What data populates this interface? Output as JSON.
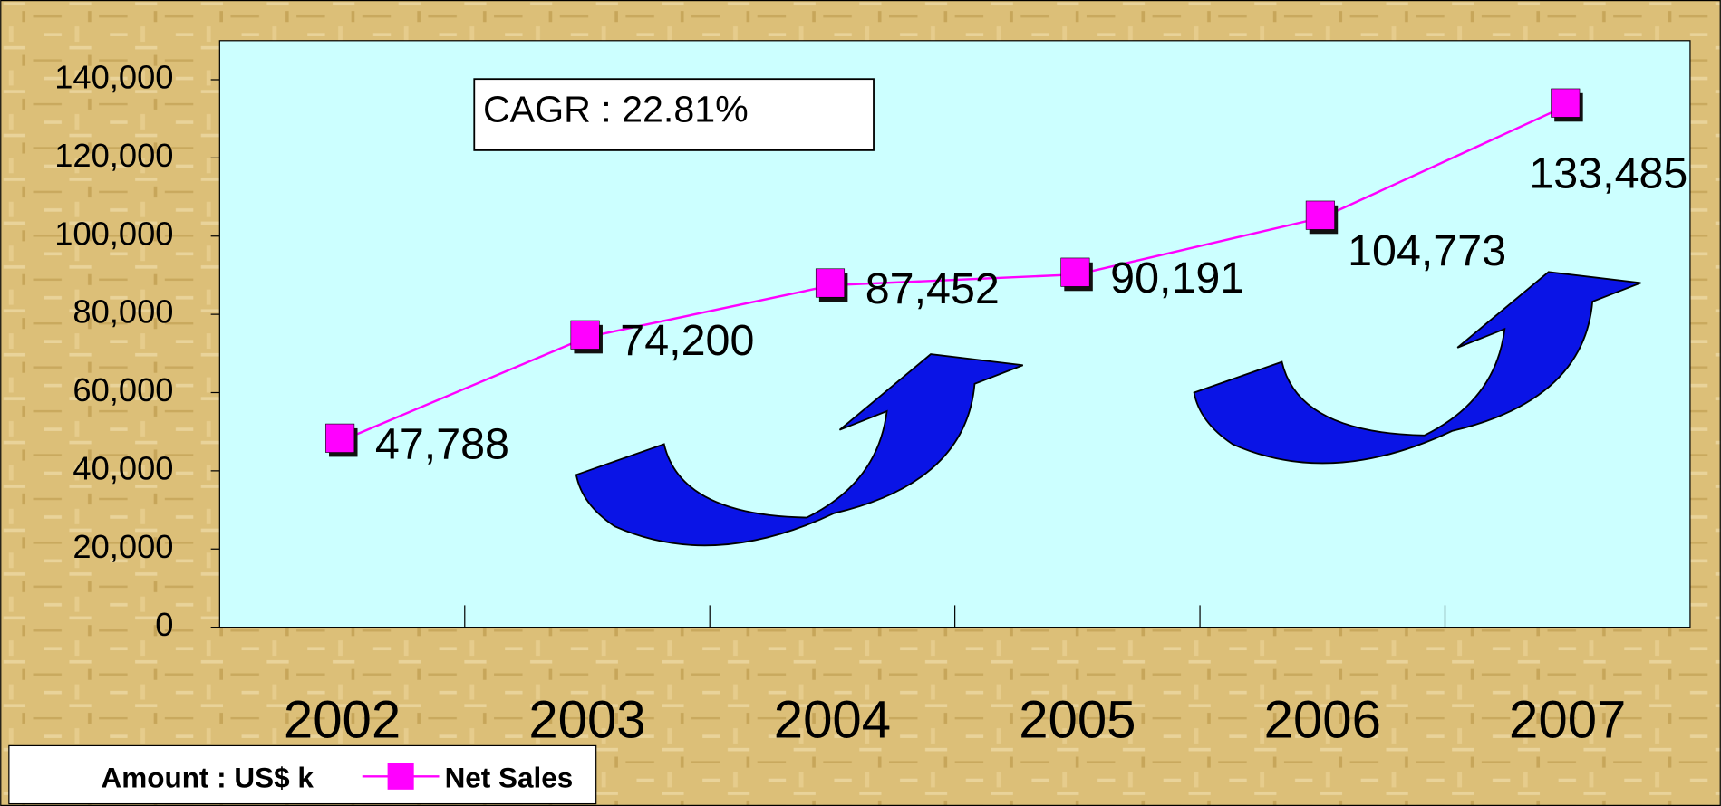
{
  "chart_data": {
    "type": "line",
    "annotation": "CAGR : 22.81%",
    "unit_note": "Amount : US$ k",
    "categories": [
      "2002",
      "2003",
      "2004",
      "2005",
      "2006",
      "2007"
    ],
    "series": [
      {
        "name": "Net Sales",
        "color": "#ff00ff",
        "values": [
          47788,
          74200,
          87452,
          90191,
          104773,
          133485
        ],
        "value_labels": [
          "47,788",
          "74,200",
          "87,452",
          "90,191",
          "104,773",
          "133,485"
        ]
      }
    ],
    "ylim": [
      0,
      150000
    ],
    "yticks": [
      0,
      {
        "value": 20000,
        "label": "20,000"
      },
      {
        "value": 40000,
        "label": "40,000"
      },
      {
        "value": 60000,
        "label": "60,000"
      },
      {
        "value": 80000,
        "label": "80,000"
      },
      {
        "value": 100000,
        "label": "100,000"
      },
      {
        "value": 120000,
        "label": "120,000"
      },
      {
        "value": 140000,
        "label": "140,000"
      }
    ],
    "plot_background": "#ccffff"
  }
}
